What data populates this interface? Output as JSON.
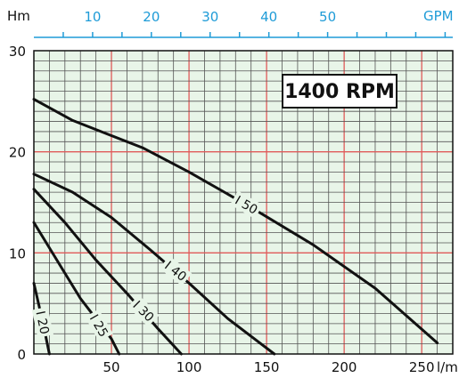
{
  "chart_data": {
    "type": "line",
    "title": "",
    "annotation": "1400 RPM",
    "ylabel": "Hm",
    "xlabel_bottom": "l/m",
    "xlabel_top": "GPM",
    "ylim": [
      0,
      30
    ],
    "xlim": [
      0,
      270
    ],
    "x2lim": [
      0,
      71.3
    ],
    "grid": true,
    "bottom_ticks": [
      "50",
      "100",
      "150",
      "200",
      "250"
    ],
    "bottom_tick_values": [
      50,
      100,
      150,
      200,
      250
    ],
    "left_ticks": [
      "0",
      "10",
      "20",
      "30"
    ],
    "left_tick_values": [
      0,
      10,
      20,
      30
    ],
    "top_ticks": [
      "10",
      "20",
      "30",
      "40",
      "50"
    ],
    "top_tick_values": [
      10,
      20,
      30,
      40,
      50
    ],
    "series": [
      {
        "name": "I 20",
        "x": [
          0,
          3,
          6,
          8,
          10
        ],
        "y": [
          7,
          5,
          3,
          1.5,
          0
        ]
      },
      {
        "name": "I 25",
        "x": [
          0,
          10,
          20,
          30,
          40,
          50,
          55
        ],
        "y": [
          13,
          10.5,
          8,
          5.5,
          3.5,
          1.5,
          0
        ]
      },
      {
        "name": "I 30",
        "x": [
          0,
          20,
          40,
          60,
          80,
          95
        ],
        "y": [
          16.3,
          13,
          9.3,
          6,
          2.5,
          0
        ]
      },
      {
        "name": "I 40",
        "x": [
          0,
          25,
          50,
          75,
          100,
          125,
          155
        ],
        "y": [
          17.8,
          16,
          13.5,
          10.3,
          7,
          3.5,
          0
        ]
      },
      {
        "name": "I 50",
        "x": [
          0,
          25,
          50,
          70,
          100,
          140,
          180,
          220,
          260
        ],
        "y": [
          25.2,
          23.1,
          21.6,
          20.4,
          18,
          14.5,
          10.8,
          6.5,
          1.1
        ]
      }
    ],
    "colors": {
      "grid_major": "#e05a5a",
      "grid_minor": "#555555",
      "background": "#e8f5e8",
      "top_axis": "#1e9bd7",
      "curve": "#111111"
    }
  }
}
